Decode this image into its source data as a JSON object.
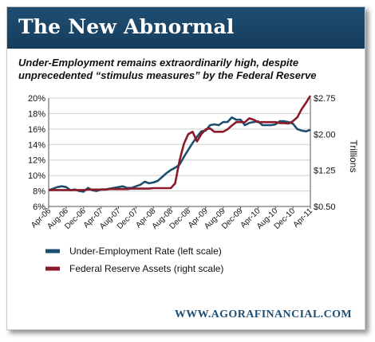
{
  "header": {
    "title": "The New Abnormal"
  },
  "subtitle": "Under-Employment remains extraordinarily high, despite unprecedented “stimulus measures” by the Federal Reserve",
  "footer": {
    "source": "WWW.AGORAFINANCIAL.COM"
  },
  "colors": {
    "banner": "#1f4e73",
    "underemployment": "#1c4f6e",
    "fed": "#8b1a2a"
  },
  "chart_data": {
    "type": "line",
    "grid": "horizontal",
    "legend_position": "bottom-left",
    "x_tick_labels": [
      "Apr-06",
      "Aug-06",
      "Dec-06",
      "Apr-07",
      "Aug-07",
      "Dec-07",
      "Apr-08",
      "Aug-08",
      "Dec-08",
      "Apr-09",
      "Aug-09",
      "Dec-09",
      "Apr-10",
      "Aug-10",
      "Dec-10",
      "Apr-11"
    ],
    "x": [
      "Apr-06",
      "May-06",
      "Jun-06",
      "Jul-06",
      "Aug-06",
      "Sep-06",
      "Oct-06",
      "Nov-06",
      "Dec-06",
      "Jan-07",
      "Feb-07",
      "Mar-07",
      "Apr-07",
      "May-07",
      "Jun-07",
      "Jul-07",
      "Aug-07",
      "Sep-07",
      "Oct-07",
      "Nov-07",
      "Dec-07",
      "Jan-08",
      "Feb-08",
      "Mar-08",
      "Apr-08",
      "May-08",
      "Jun-08",
      "Jul-08",
      "Aug-08",
      "Sep-08",
      "Oct-08",
      "Nov-08",
      "Dec-08",
      "Jan-09",
      "Feb-09",
      "Mar-09",
      "Apr-09",
      "May-09",
      "Jun-09",
      "Jul-09",
      "Aug-09",
      "Sep-09",
      "Oct-09",
      "Nov-09",
      "Dec-09",
      "Jan-10",
      "Feb-10",
      "Mar-10",
      "Apr-10",
      "May-10",
      "Jun-10",
      "Jul-10",
      "Aug-10",
      "Sep-10",
      "Oct-10",
      "Nov-10",
      "Dec-10",
      "Jan-11",
      "Feb-11",
      "Mar-11",
      "Apr-11"
    ],
    "y_left": {
      "label": "",
      "ticks": [
        "6%",
        "8%",
        "10%",
        "12%",
        "14%",
        "16%",
        "18%",
        "20%"
      ],
      "range": [
        6,
        20
      ]
    },
    "y_right": {
      "label": "Trillions",
      "ticks": [
        "$0.50",
        "$1.25",
        "$2.00",
        "$2.75"
      ],
      "range": [
        0.5,
        2.75
      ]
    },
    "series": [
      {
        "name": "Under-Employment Rate (left scale)",
        "axis": "left",
        "color": "#1c4f6e",
        "values": [
          8.1,
          8.3,
          8.5,
          8.6,
          8.5,
          8.1,
          8.2,
          8.0,
          7.9,
          8.4,
          8.1,
          8.0,
          8.2,
          8.2,
          8.3,
          8.4,
          8.5,
          8.6,
          8.4,
          8.4,
          8.6,
          8.8,
          9.2,
          9.0,
          9.1,
          9.3,
          9.8,
          10.3,
          10.7,
          11.0,
          11.4,
          12.4,
          13.3,
          14.2,
          15.0,
          15.7,
          15.8,
          16.5,
          16.6,
          16.5,
          16.9,
          16.9,
          17.5,
          17.2,
          17.2,
          16.5,
          16.8,
          16.9,
          17.0,
          16.5,
          16.5,
          16.5,
          16.6,
          17.0,
          17.0,
          16.9,
          16.7,
          16.0,
          15.8,
          15.7,
          15.9
        ]
      },
      {
        "name": "Federal Reserve Assets (right scale)",
        "axis": "right",
        "color": "#8b1a2a",
        "values": [
          0.84,
          0.84,
          0.84,
          0.84,
          0.84,
          0.84,
          0.84,
          0.84,
          0.84,
          0.85,
          0.85,
          0.85,
          0.85,
          0.85,
          0.86,
          0.86,
          0.86,
          0.86,
          0.86,
          0.87,
          0.87,
          0.87,
          0.87,
          0.87,
          0.88,
          0.88,
          0.88,
          0.88,
          0.88,
          0.98,
          1.45,
          1.8,
          2.0,
          2.05,
          1.85,
          2.0,
          2.1,
          2.12,
          2.05,
          2.05,
          2.05,
          2.1,
          2.18,
          2.25,
          2.25,
          2.25,
          2.33,
          2.3,
          2.25,
          2.25,
          2.25,
          2.25,
          2.25,
          2.23,
          2.23,
          2.22,
          2.27,
          2.35,
          2.52,
          2.65,
          2.8
        ]
      }
    ]
  }
}
